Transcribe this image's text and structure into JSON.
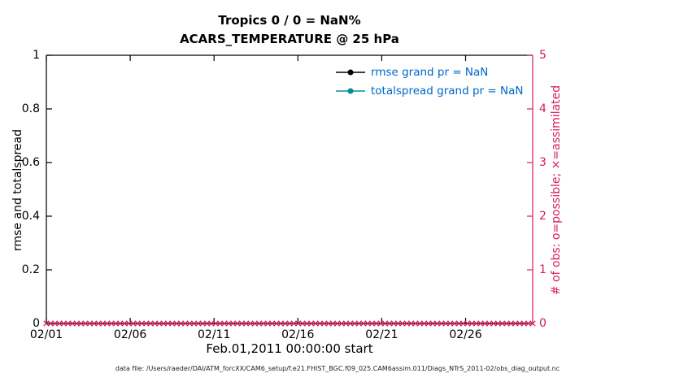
{
  "chart_data": {
    "type": "line",
    "title": "Tropics 0 / 0 = NaN%",
    "subtitle": "ACARS_TEMPERATURE @ 25 hPa",
    "xlabel": "Feb.01,2011 00:00:00 start",
    "ylabel_left": "rmse and totalspread",
    "ylabel_right": "# of obs: o=possible; ×=assimilated",
    "footer": "data file: /Users/raeder/DAI/ATM_forcXX/CAM6_setup/f.e21.FHIST_BGC.f09_025.CAM6assim.011/Diags_NTrS_2011-02/obs_diag_output.nc",
    "ylim_left": [
      0,
      1
    ],
    "yticks_left": [
      "0",
      "0.2",
      "0.4",
      "0.6",
      "0.8",
      "1"
    ],
    "ytick_values_left": [
      0,
      0.2,
      0.4,
      0.6,
      0.8,
      1
    ],
    "ylim_right": [
      0,
      5
    ],
    "yticks_right": [
      "0",
      "1",
      "2",
      "3",
      "4",
      "5"
    ],
    "ytick_values_right": [
      0,
      1,
      2,
      3,
      4,
      5
    ],
    "x_range_days": [
      0,
      29
    ],
    "xtick_days": [
      0,
      5,
      10,
      15,
      20,
      25
    ],
    "xtick_labels": [
      "02/01",
      "02/06",
      "02/11",
      "02/16",
      "02/21",
      "02/26"
    ],
    "grid": false,
    "legend_position": "upper-right-inside",
    "series": [
      {
        "name": "rmse grand pr = NaN",
        "color": "#000000",
        "marker": "circle",
        "values": []
      },
      {
        "name": "totalspread grand pr = NaN",
        "color": "#009090",
        "marker": "circle",
        "values": []
      }
    ],
    "obs_markers": {
      "possible_symbol": "o",
      "assimilated_symbol": "x",
      "color": "#d81b60",
      "value": 0,
      "count": 113
    },
    "axis_colors": {
      "left": "#000000",
      "right": "#d81b60"
    }
  }
}
